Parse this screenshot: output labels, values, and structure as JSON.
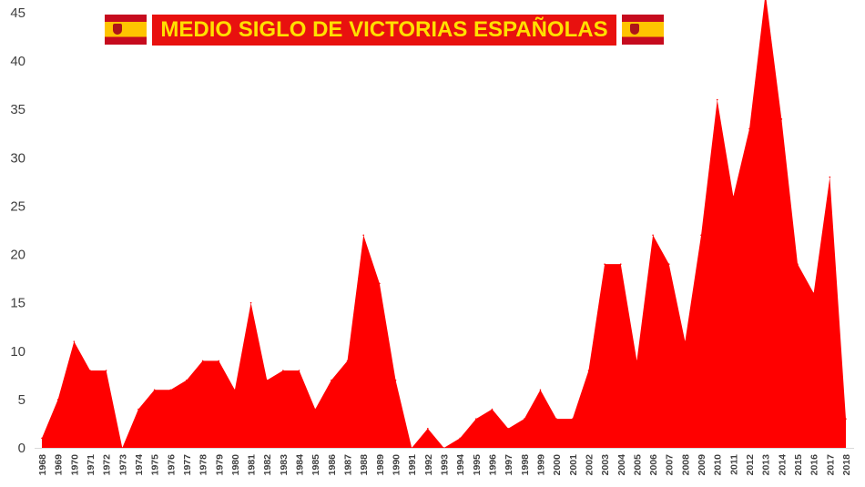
{
  "chart_data": {
    "type": "area",
    "title": "MEDIO SIGLO DE VICTORIAS ESPAÑOLAS",
    "xlabel": "",
    "ylabel": "",
    "ylim": [
      0,
      45
    ],
    "yticks": [
      0,
      5,
      10,
      15,
      20,
      25,
      30,
      35,
      40,
      45
    ],
    "grid": false,
    "legend": "none",
    "categories": [
      "1968",
      "1969",
      "1970",
      "1971",
      "1972",
      "1973",
      "1974",
      "1975",
      "1976",
      "1977",
      "1978",
      "1979",
      "1980",
      "1981",
      "1982",
      "1983",
      "1984",
      "1985",
      "1986",
      "1987",
      "1988",
      "1989",
      "1990",
      "1991",
      "1992",
      "1993",
      "1994",
      "1995",
      "1996",
      "1997",
      "1998",
      "1999",
      "2000",
      "2001",
      "2002",
      "2003",
      "2004",
      "2005",
      "2006",
      "2007",
      "2008",
      "2009",
      "2010",
      "2011",
      "2012",
      "2013",
      "2014",
      "2015",
      "2016",
      "2017",
      "2018"
    ],
    "values": [
      1,
      5,
      11,
      8,
      8,
      0,
      4,
      6,
      6,
      7,
      9,
      9,
      6,
      15,
      7,
      8,
      8,
      4,
      7,
      9,
      22,
      17,
      7,
      0,
      2,
      0,
      1,
      3,
      4,
      2,
      3,
      6,
      3,
      3,
      8,
      19,
      19,
      9,
      22,
      19,
      11,
      22,
      36,
      26,
      33,
      47,
      34,
      19,
      16,
      28,
      3
    ],
    "colors": {
      "area": "#ff0000",
      "banner_bg": "#e8110f",
      "banner_text": "#ffe000",
      "flag_red": "#c60b1e",
      "flag_yellow": "#ffc400"
    }
  },
  "decor": {
    "flags": [
      "flag-of-spain-icon",
      "flag-of-spain-icon"
    ]
  }
}
